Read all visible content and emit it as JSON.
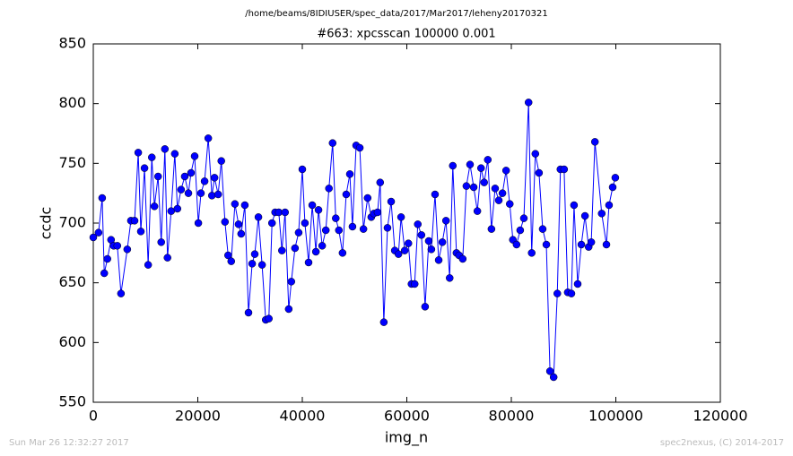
{
  "chart_data": {
    "type": "line",
    "suptitle": "/home/beams/8IDIUSER/spec_data/2017/Mar2017/leheny20170321",
    "title": "#663: xpcsscan 100000 0.001",
    "x_label": "img_n",
    "y_label": "ccdc",
    "footer_left": "Sun Mar 26 12:32:27 2017",
    "footer_right": "spec2nexus, (C) 2014-2017",
    "xlim": [
      0,
      120000
    ],
    "xticks": [
      0,
      20000,
      40000,
      60000,
      80000,
      100000,
      120000
    ],
    "ylim": [
      550,
      850
    ],
    "yticks": [
      550,
      600,
      650,
      700,
      750,
      800,
      850
    ],
    "grid": false,
    "series": [
      {
        "color": "#0000ff",
        "x": [
          0,
          1000,
          1700,
          2100,
          2700,
          3400,
          3900,
          4600,
          5300,
          6500,
          7200,
          7900,
          8600,
          9100,
          9800,
          10500,
          11200,
          11700,
          12400,
          13000,
          13700,
          14200,
          14900,
          15600,
          16100,
          16800,
          17500,
          18200,
          18700,
          19400,
          20100,
          20600,
          21300,
          22000,
          22700,
          23200,
          23900,
          24500,
          25200,
          25800,
          26400,
          27100,
          27800,
          28300,
          29000,
          29700,
          30400,
          30900,
          31600,
          32300,
          33000,
          33600,
          34200,
          34800,
          35500,
          36100,
          36700,
          37400,
          37900,
          38600,
          39300,
          40000,
          40500,
          41200,
          41900,
          42600,
          43100,
          43800,
          44500,
          45100,
          45800,
          46400,
          47000,
          47700,
          48400,
          49100,
          49600,
          50300,
          51000,
          51700,
          52500,
          53200,
          53700,
          54400,
          54900,
          55600,
          56300,
          57000,
          57700,
          58400,
          58900,
          59600,
          60300,
          60900,
          61500,
          62100,
          62800,
          63500,
          64200,
          64700,
          65400,
          66100,
          66800,
          67500,
          68200,
          68800,
          69500,
          70000,
          70700,
          71400,
          72100,
          72800,
          73500,
          74200,
          74800,
          75500,
          76200,
          76900,
          77600,
          78300,
          79000,
          79700,
          80300,
          81000,
          81700,
          82400,
          83300,
          83900,
          84600,
          85300,
          86000,
          86700,
          87400,
          88100,
          88800,
          89400,
          90100,
          90800,
          91500,
          92000,
          92700,
          93400,
          94100,
          94800,
          95300,
          96000,
          97300,
          98200,
          98700,
          99400,
          99900
        ],
        "values": [
          688,
          692,
          721,
          658,
          670,
          686,
          681,
          681,
          641,
          678,
          702,
          702,
          759,
          693,
          746,
          665,
          755,
          714,
          739,
          684,
          762,
          671,
          710,
          758,
          712,
          728,
          739,
          725,
          742,
          756,
          700,
          725,
          735,
          771,
          723,
          738,
          724,
          752,
          701,
          673,
          668,
          716,
          699,
          691,
          715,
          625,
          666,
          674,
          705,
          665,
          619,
          620,
          700,
          709,
          709,
          677,
          709,
          628,
          651,
          679,
          692,
          745,
          700,
          667,
          715,
          676,
          711,
          681,
          694,
          729,
          767,
          704,
          694,
          675,
          724,
          741,
          697,
          765,
          763,
          695,
          721,
          705,
          708,
          709,
          734,
          617,
          696,
          718,
          677,
          674,
          705,
          677,
          683,
          649,
          649,
          699,
          690,
          630,
          685,
          678,
          724,
          669,
          684,
          702,
          654,
          748,
          675,
          673,
          670,
          731,
          749,
          730,
          710,
          746,
          734,
          753,
          695,
          729,
          719,
          725,
          744,
          716,
          686,
          682,
          694,
          704,
          801,
          675,
          758,
          742,
          695,
          682,
          576,
          571,
          641,
          745,
          745,
          642,
          641,
          715,
          649,
          682,
          706,
          680,
          684,
          768,
          708,
          682,
          715,
          730,
          738
        ]
      }
    ]
  }
}
